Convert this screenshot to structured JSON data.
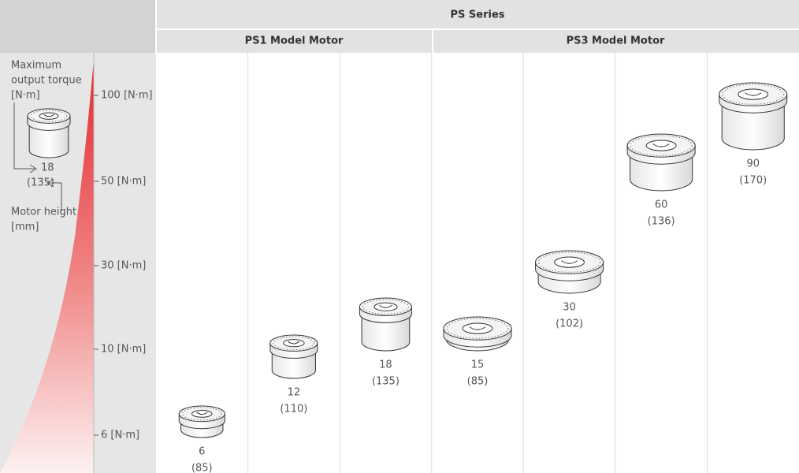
{
  "header": {
    "series": "PS Series",
    "groups": [
      "PS1 Model Motor",
      "PS3 Model Motor"
    ]
  },
  "legend": {
    "torque_label": [
      "Maximum",
      "output torque",
      "[N·m]"
    ],
    "example_torque": "18",
    "example_height": "(135)",
    "height_label": [
      "Motor height",
      "[mm]"
    ]
  },
  "axis": {
    "ticks": [
      "100 [N·m]",
      "50 [N·m]",
      "30 [N·m]",
      "10 [N·m]",
      "6 [N·m]"
    ]
  },
  "motors": [
    {
      "torque": "6",
      "height": "(85)"
    },
    {
      "torque": "12",
      "height": "(110)"
    },
    {
      "torque": "18",
      "height": "(135)"
    },
    {
      "torque": "15",
      "height": "(85)"
    },
    {
      "torque": "30",
      "height": "(102)"
    },
    {
      "torque": "60",
      "height": "(136)"
    },
    {
      "torque": "90",
      "height": "(170)"
    }
  ]
}
